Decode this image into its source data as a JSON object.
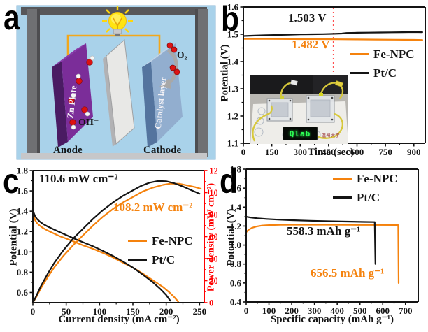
{
  "panel_labels": {
    "a": "a",
    "b": "b",
    "c": "c",
    "d": "d"
  },
  "colors": {
    "fenpc_orange": "#f5820d",
    "ptc_black": "#141414",
    "right_axis_red": "#ff0000",
    "dashed_line_red": "#ff5050",
    "electrolyte_blue": "#a9d2ea",
    "anode_purple": "#7b2d99",
    "cathode_blue": "#92aecf"
  },
  "panel_a": {
    "label": "a",
    "anode_plate": "Zn Plate",
    "anode": "Anode",
    "hydroxide": "OH⁻",
    "cathode_plate": "Catalyst layer",
    "cathode": "Cathode",
    "oxygen": "O₂"
  },
  "panel_b_inset": {
    "display": "Qlab",
    "stamp": "温州大学"
  },
  "chart_data": [
    {
      "id": "b",
      "type": "line",
      "xlabel": "Time (sec)",
      "ylabel": "Potential (V)",
      "xlim": [
        0,
        960
      ],
      "ylim": [
        1.1,
        1.6
      ],
      "x_ticks": [
        "0",
        "150",
        "300",
        "450",
        "600",
        "750",
        "900"
      ],
      "y_ticks": [
        "1.1",
        "1.2",
        "1.3",
        "1.4",
        "1.5",
        "1.6"
      ],
      "dashed_vline_x": 475,
      "grid": false,
      "legend_position": "middle-right",
      "annotations": [
        {
          "text": "1.503 V",
          "color": "#141414"
        },
        {
          "text": "1.482 V",
          "color": "#f5820d"
        }
      ],
      "series": [
        {
          "name": "Fe-NPC",
          "color": "#f5820d",
          "axis": "left",
          "points": [
            [
              0,
              1.483
            ],
            [
              100,
              1.483
            ],
            [
              200,
              1.4825
            ],
            [
              300,
              1.482
            ],
            [
              400,
              1.482
            ],
            [
              500,
              1.4815
            ],
            [
              600,
              1.481
            ],
            [
              700,
              1.4805
            ],
            [
              800,
              1.48
            ],
            [
              900,
              1.4795
            ],
            [
              945,
              1.479
            ]
          ]
        },
        {
          "name": "Pt/C",
          "color": "#141414",
          "axis": "left",
          "points": [
            [
              0,
              1.4935
            ],
            [
              60,
              1.495
            ],
            [
              120,
              1.4965
            ],
            [
              180,
              1.4975
            ],
            [
              240,
              1.4985
            ],
            [
              300,
              1.4995
            ],
            [
              360,
              1.5
            ],
            [
              420,
              1.5005
            ],
            [
              480,
              1.5015
            ],
            [
              520,
              1.5025
            ],
            [
              545,
              1.5045
            ],
            [
              600,
              1.5055
            ],
            [
              660,
              1.506
            ],
            [
              720,
              1.5065
            ],
            [
              780,
              1.507
            ],
            [
              840,
              1.5075
            ],
            [
              900,
              1.508
            ],
            [
              945,
              1.5075
            ]
          ]
        }
      ]
    },
    {
      "id": "c",
      "type": "line",
      "xlabel": "Current density (mA cm⁻²)",
      "ylabel": "Potential (V)",
      "ylabel_right": "Power density (mW cm⁻²)",
      "xlim": [
        0,
        257
      ],
      "ylim": [
        0.5,
        1.8
      ],
      "ylim_right": [
        0,
        120
      ],
      "x_ticks": [
        "0",
        "50",
        "100",
        "150",
        "200",
        "250"
      ],
      "y_ticks": [
        "0.6",
        "0.8",
        "1.0",
        "1.2",
        "1.4",
        "1.6",
        "1.8"
      ],
      "y_ticks_right": [
        "0",
        "20",
        "40",
        "60",
        "80",
        "100",
        "120"
      ],
      "right_axis_color": "#ff0000",
      "grid": false,
      "legend_position": "center-right",
      "annotations": [
        {
          "text": "110.6 mW cm⁻²",
          "color": "#141414"
        },
        {
          "text": "108.2 mW cm⁻²",
          "color": "#f5820d"
        }
      ],
      "series": [
        {
          "name": "Fe-NPC",
          "color": "#f5820d",
          "axis": "left",
          "points": [
            [
              0,
              1.395
            ],
            [
              1,
              1.36
            ],
            [
              3,
              1.315
            ],
            [
              6,
              1.285
            ],
            [
              10,
              1.26
            ],
            [
              15,
              1.235
            ],
            [
              22,
              1.21
            ],
            [
              30,
              1.185
            ],
            [
              40,
              1.155
            ],
            [
              50,
              1.13
            ],
            [
              62,
              1.1
            ],
            [
              75,
              1.065
            ],
            [
              90,
              1.03
            ],
            [
              105,
              0.99
            ],
            [
              120,
              0.945
            ],
            [
              135,
              0.895
            ],
            [
              150,
              0.845
            ],
            [
              165,
              0.785
            ],
            [
              180,
              0.72
            ],
            [
              195,
              0.655
            ],
            [
              205,
              0.6
            ],
            [
              212,
              0.555
            ],
            [
              218,
              0.51
            ]
          ]
        },
        {
          "name": "Pt/C",
          "color": "#141414",
          "axis": "left",
          "points": [
            [
              0,
              1.415
            ],
            [
              1,
              1.39
            ],
            [
              3,
              1.355
            ],
            [
              6,
              1.325
            ],
            [
              10,
              1.3
            ],
            [
              15,
              1.275
            ],
            [
              22,
              1.25
            ],
            [
              30,
              1.225
            ],
            [
              40,
              1.195
            ],
            [
              50,
              1.165
            ],
            [
              62,
              1.13
            ],
            [
              75,
              1.095
            ],
            [
              90,
              1.055
            ],
            [
              105,
              1.01
            ],
            [
              120,
              0.96
            ],
            [
              135,
              0.905
            ],
            [
              150,
              0.845
            ],
            [
              165,
              0.775
            ],
            [
              180,
              0.7
            ],
            [
              192,
              0.63
            ],
            [
              200,
              0.575
            ],
            [
              206,
              0.52
            ]
          ]
        },
        {
          "name": "Fe-NPC",
          "color": "#f5820d",
          "axis": "right",
          "points": [
            [
              0,
              0
            ],
            [
              5,
              5
            ],
            [
              12,
              13
            ],
            [
              22,
              23
            ],
            [
              32,
              32
            ],
            [
              45,
              42
            ],
            [
              60,
              52
            ],
            [
              75,
              61
            ],
            [
              90,
              70
            ],
            [
              105,
              78
            ],
            [
              120,
              85
            ],
            [
              135,
              91
            ],
            [
              150,
              96
            ],
            [
              165,
              101
            ],
            [
              180,
              104.5
            ],
            [
              195,
              107
            ],
            [
              207,
              108.2
            ],
            [
              220,
              108
            ],
            [
              232,
              106.5
            ],
            [
              243,
              105
            ],
            [
              252,
              103.5
            ]
          ]
        },
        {
          "name": "Pt/C",
          "color": "#141414",
          "axis": "right",
          "points": [
            [
              0,
              0
            ],
            [
              5,
              6
            ],
            [
              12,
              15
            ],
            [
              22,
              26
            ],
            [
              32,
              36
            ],
            [
              45,
              47
            ],
            [
              60,
              58
            ],
            [
              75,
              67
            ],
            [
              90,
              76
            ],
            [
              105,
              84
            ],
            [
              120,
              91
            ],
            [
              135,
              97
            ],
            [
              150,
              102
            ],
            [
              162,
              106
            ],
            [
              175,
              109
            ],
            [
              188,
              110.6
            ],
            [
              200,
              110.3
            ],
            [
              212,
              108.5
            ],
            [
              225,
              105.5
            ],
            [
              238,
              102
            ],
            [
              250,
              99
            ]
          ]
        }
      ]
    },
    {
      "id": "d",
      "type": "line",
      "xlabel": "Specific capacity (mAh g⁻¹)",
      "ylabel": "Potential (V)",
      "xlim": [
        0,
        756
      ],
      "ylim": [
        0.4,
        1.8
      ],
      "x_ticks": [
        "0",
        "100",
        "200",
        "300",
        "400",
        "500",
        "600",
        "700"
      ],
      "y_ticks": [
        "0.4",
        "0.6",
        "0.8",
        "1.0",
        "1.2",
        "1.4",
        "1.6",
        "1.8"
      ],
      "grid": false,
      "legend_position": "top-right",
      "annotations": [
        {
          "text": "558.3 mAh g⁻¹",
          "color": "#141414"
        },
        {
          "text": "656.5 mAh g⁻¹",
          "color": "#f5820d"
        }
      ],
      "series": [
        {
          "name": "Fe-NPC",
          "color": "#f5820d",
          "axis": "left",
          "points": [
            [
              0,
              1.135
            ],
            [
              10,
              1.16
            ],
            [
              25,
              1.18
            ],
            [
              45,
              1.195
            ],
            [
              70,
              1.205
            ],
            [
              100,
              1.21
            ],
            [
              150,
              1.213
            ],
            [
              250,
              1.214
            ],
            [
              350,
              1.214
            ],
            [
              450,
              1.213
            ],
            [
              550,
              1.212
            ],
            [
              650,
              1.211
            ],
            [
              668,
              1.21
            ],
            [
              670,
              0.6
            ]
          ]
        },
        {
          "name": "Pt/C",
          "color": "#141414",
          "axis": "left",
          "points": [
            [
              0,
              1.298
            ],
            [
              20,
              1.29
            ],
            [
              50,
              1.282
            ],
            [
              90,
              1.275
            ],
            [
              140,
              1.268
            ],
            [
              200,
              1.262
            ],
            [
              280,
              1.256
            ],
            [
              360,
              1.251
            ],
            [
              440,
              1.247
            ],
            [
              520,
              1.244
            ],
            [
              565,
              1.242
            ],
            [
              568,
              0.8
            ]
          ]
        }
      ]
    }
  ]
}
